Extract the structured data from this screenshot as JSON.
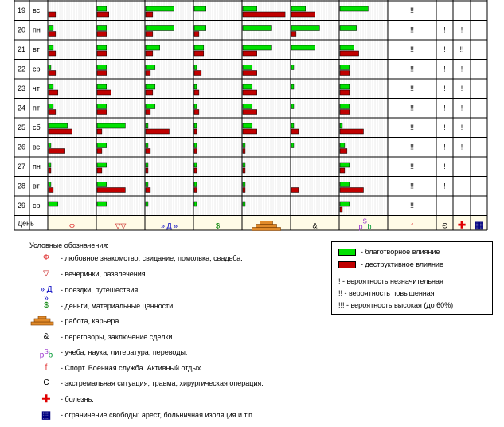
{
  "table": {
    "footer": {
      "day_label": "День",
      "icons": [
        "heart-icon",
        "glass-icon",
        "travel-icon",
        "money-icon",
        "work-icon",
        "negotiation-icon",
        "study-icon",
        "sport-icon",
        "extreme-icon",
        "illness-icon",
        "restriction-icon"
      ],
      "glyphs": [
        "Φ",
        "▽▽",
        "» Д »",
        "$",
        "",
        "&",
        "pSb",
        "f",
        "Є",
        "✚",
        "▦"
      ],
      "colors": [
        "#e03030",
        "#c00000",
        "#0000c0",
        "#008000",
        "#b35c00",
        "#000000",
        "#9933cc",
        "#e03030",
        "#000000",
        "#e00000",
        "#000080"
      ]
    },
    "rows": [
      {
        "day": "19",
        "wd": "вс",
        "bars": [
          [
            0,
            0.15
          ],
          [
            0.2,
            0.25
          ],
          [
            0.6,
            0.15
          ],
          [
            0.25,
            0
          ],
          [
            0.3,
            0.9
          ],
          [
            0.3,
            0.5
          ],
          [
            0.6,
            0
          ]
        ],
        "m": [
          "!!",
          "",
          ""
        ]
      },
      {
        "day": "20",
        "wd": "пн",
        "bars": [
          [
            0.1,
            0.15
          ],
          [
            0.2,
            0.2
          ],
          [
            0.6,
            0.15
          ],
          [
            0.25,
            0.1
          ],
          [
            0.6,
            0
          ],
          [
            0.6,
            0.1
          ],
          [
            0.35,
            0
          ]
        ],
        "m": [
          "!!",
          "!",
          "!"
        ]
      },
      {
        "day": "21",
        "wd": "вт",
        "bars": [
          [
            0.1,
            0.15
          ],
          [
            0.2,
            0.2
          ],
          [
            0.3,
            0.15
          ],
          [
            0.2,
            0.2
          ],
          [
            0.6,
            0.3
          ],
          [
            0.5,
            0
          ],
          [
            0.3,
            0.4
          ]
        ],
        "m": [
          "!!",
          "!",
          "!!"
        ]
      },
      {
        "day": "22",
        "wd": "ср",
        "bars": [
          [
            0.05,
            0.15
          ],
          [
            0.2,
            0.2
          ],
          [
            0.2,
            0.1
          ],
          [
            0.05,
            0.15
          ],
          [
            0.2,
            0.3
          ],
          [
            0.05,
            0
          ],
          [
            0.2,
            0.2
          ]
        ],
        "m": [
          "!!",
          "!",
          "!"
        ]
      },
      {
        "day": "23",
        "wd": "чт",
        "bars": [
          [
            0.1,
            0.2
          ],
          [
            0.2,
            0.3
          ],
          [
            0.2,
            0.15
          ],
          [
            0.05,
            0.1
          ],
          [
            0.2,
            0.3
          ],
          [
            0.05,
            0
          ],
          [
            0.2,
            0.2
          ]
        ],
        "m": [
          "!!",
          "!",
          "!"
        ]
      },
      {
        "day": "24",
        "wd": "пт",
        "bars": [
          [
            0.1,
            0.15
          ],
          [
            0.2,
            0.2
          ],
          [
            0.2,
            0.1
          ],
          [
            0.05,
            0.1
          ],
          [
            0.2,
            0.3
          ],
          [
            0.05,
            0
          ],
          [
            0.2,
            0.2
          ]
        ],
        "m": [
          "!!",
          "!",
          "!"
        ]
      },
      {
        "day": "25",
        "wd": "сб",
        "bars": [
          [
            0.4,
            0.5
          ],
          [
            0.6,
            0.1
          ],
          [
            0.05,
            0.5
          ],
          [
            0.05,
            0.05
          ],
          [
            0.2,
            0.3
          ],
          [
            0.05,
            0.15
          ],
          [
            0.05,
            0.5
          ]
        ],
        "m": [
          "!!",
          "!",
          "!"
        ]
      },
      {
        "day": "26",
        "wd": "вс",
        "bars": [
          [
            0.05,
            0.35
          ],
          [
            0.2,
            0.1
          ],
          [
            0.05,
            0.1
          ],
          [
            0.05,
            0.05
          ],
          [
            0.05,
            0.05
          ],
          [
            0.05,
            0
          ],
          [
            0.1,
            0.15
          ]
        ],
        "m": [
          "!!",
          "!",
          "!"
        ]
      },
      {
        "day": "27",
        "wd": "пн",
        "bars": [
          [
            0.05,
            0.05
          ],
          [
            0.2,
            0.1
          ],
          [
            0.05,
            0.05
          ],
          [
            0.05,
            0.05
          ],
          [
            0.05,
            0.05
          ],
          [
            0,
            0
          ],
          [
            0.2,
            0.1
          ]
        ],
        "m": [
          "!!",
          "!",
          ""
        ]
      },
      {
        "day": "28",
        "wd": "вт",
        "bars": [
          [
            0.05,
            0.1
          ],
          [
            0.2,
            0.6
          ],
          [
            0.05,
            0.1
          ],
          [
            0.05,
            0.05
          ],
          [
            0.05,
            0.05
          ],
          [
            0,
            0.15
          ],
          [
            0.2,
            0.5
          ]
        ],
        "m": [
          "!!",
          "!",
          ""
        ]
      },
      {
        "day": "29",
        "wd": "ср",
        "bars": [
          [
            0.2,
            0
          ],
          [
            0.2,
            0
          ],
          [
            0.05,
            0
          ],
          [
            0.05,
            0
          ],
          [
            0.05,
            0
          ],
          [
            0,
            0
          ],
          [
            0.2,
            0.05
          ]
        ],
        "m": [
          "!!",
          "",
          ""
        ]
      }
    ]
  },
  "legend": {
    "title": "Условные обозначения:",
    "items": [
      {
        "icon": "heart-icon",
        "glyph": "Φ",
        "color": "#e03030",
        "text": "- любовное знакомство, свидание, помолвка, свадьба."
      },
      {
        "icon": "glass-icon",
        "glyph": "▽",
        "color": "#c00000",
        "text": "- вечеринки, развлечения."
      },
      {
        "icon": "travel-icon",
        "glyph": "» Д »",
        "color": "#0000c0",
        "text": "- поездки, путешествия."
      },
      {
        "icon": "money-icon",
        "glyph": "$",
        "color": "#008000",
        "text": "- деньги, материальные ценности."
      },
      {
        "icon": "work-icon",
        "glyph": "",
        "color": "#b35c00",
        "text": "- работа, карьера."
      },
      {
        "icon": "negotiation-icon",
        "glyph": "&",
        "color": "#000000",
        "text": "- переговоры, заключение сделки."
      },
      {
        "icon": "study-icon",
        "glyph": "pSb",
        "color": "#9933cc",
        "text": "- учеба, наука, литература, переводы."
      },
      {
        "icon": "sport-icon",
        "glyph": "f",
        "color": "#e03030",
        "text": "- Спорт. Военная служба. Активный отдых."
      },
      {
        "icon": "extreme-icon",
        "glyph": "Є",
        "color": "#000000",
        "text": "- экстремальная ситуация, травма, хирургическая операция."
      },
      {
        "icon": "illness-icon",
        "glyph": "✚",
        "color": "#e00000",
        "text": "- болезнь."
      },
      {
        "icon": "restriction-icon",
        "glyph": "▦",
        "color": "#000080",
        "text": "- ограничение свободы: арест, больничная изоляция и т.п."
      }
    ],
    "influence": {
      "positive": {
        "color": "#00e000",
        "text": "- благотворное влияние"
      },
      "negative": {
        "color": "#c00000",
        "text": "- деструктивное влияние"
      }
    },
    "probability": [
      "! - вероятность незначительная",
      "!! - вероятность повышенная",
      "!!! - вероятность высокая (до 60%)"
    ]
  }
}
